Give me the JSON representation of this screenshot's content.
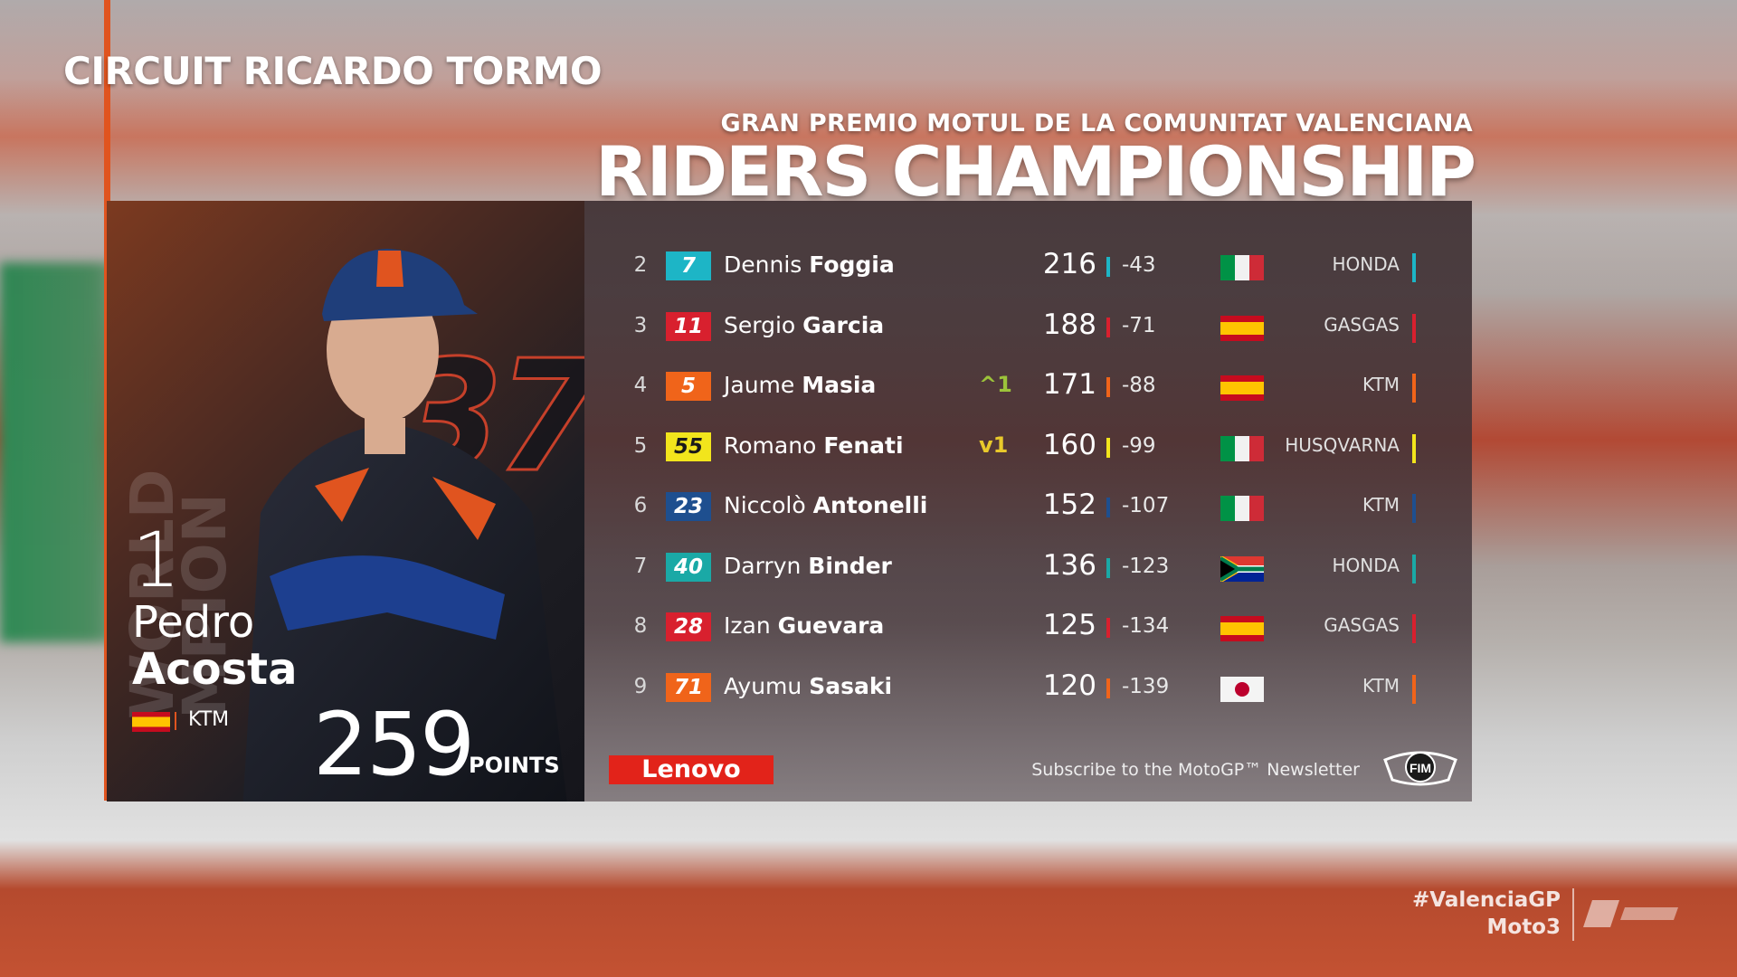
{
  "header": {
    "circuit": "CIRCUIT RICARDO TORMO",
    "event": "GRAN PREMIO MOTUL DE LA COMUNITAT VALENCIANA",
    "title": "RIDERS CHAMPIONSHIP"
  },
  "leader": {
    "watermark_line1": "WORLD",
    "watermark_line2": "MPION",
    "bike_number": "37",
    "position": "1",
    "first_name": "Pedro",
    "last_name": "Acosta",
    "flag": "spain-flag",
    "team": "KTM",
    "points": "259",
    "points_label": "POINTS"
  },
  "standings": [
    {
      "pos": "2",
      "num": "7",
      "num_bg": "#1db5c6",
      "num_color": "#ffffff",
      "first": "Dennis",
      "last": "Foggia",
      "move": "",
      "pts": "216",
      "bar": "#1db5c6",
      "gap": "-43",
      "flag": "italy-flag",
      "team": "HONDA",
      "team_color": "#1db5c6"
    },
    {
      "pos": "3",
      "num": "11",
      "num_bg": "#d8202e",
      "num_color": "#ffffff",
      "first": "Sergio",
      "last": "Garcia",
      "move": "",
      "pts": "188",
      "bar": "#d8202e",
      "gap": "-71",
      "flag": "spain-flag",
      "team": "GASGAS",
      "team_color": "#d8202e"
    },
    {
      "pos": "4",
      "num": "5",
      "num_bg": "#f0641a",
      "num_color": "#ffffff",
      "first": "Jaume",
      "last": "Masia",
      "move": "^1",
      "move_color": "#9cc33a",
      "pts": "171",
      "bar": "#f0641a",
      "gap": "-88",
      "flag": "spain-flag",
      "team": "KTM",
      "team_color": "#f0641a"
    },
    {
      "pos": "5",
      "num": "55",
      "num_bg": "#f2e51c",
      "num_color": "#1a1a1a",
      "first": "Romano",
      "last": "Fenati",
      "move": "v1",
      "move_color": "#e8c92b",
      "pts": "160",
      "bar": "#f2e51c",
      "gap": "-99",
      "flag": "italy-flag",
      "team": "HUSQVARNA",
      "team_color": "#f2e51c"
    },
    {
      "pos": "6",
      "num": "23",
      "num_bg": "#1e4f8f",
      "num_color": "#ffffff",
      "first": "Niccolò",
      "last": "Antonelli",
      "move": "",
      "pts": "152",
      "bar": "#1e4f8f",
      "gap": "-107",
      "flag": "italy-flag",
      "team": "KTM",
      "team_color": "#1e4f8f"
    },
    {
      "pos": "7",
      "num": "40",
      "num_bg": "#1aa9a6",
      "num_color": "#ffffff",
      "first": "Darryn",
      "last": "Binder",
      "move": "",
      "pts": "136",
      "bar": "#1aa9a6",
      "gap": "-123",
      "flag": "south-africa-flag",
      "team": "HONDA",
      "team_color": "#1aa9a6"
    },
    {
      "pos": "8",
      "num": "28",
      "num_bg": "#d8202e",
      "num_color": "#ffffff",
      "first": "Izan",
      "last": "Guevara",
      "move": "",
      "pts": "125",
      "bar": "#d8202e",
      "gap": "-134",
      "flag": "spain-flag",
      "team": "GASGAS",
      "team_color": "#d8202e"
    },
    {
      "pos": "9",
      "num": "71",
      "num_bg": "#f0641a",
      "num_color": "#ffffff",
      "first": "Ayumu",
      "last": "Sasaki",
      "move": "",
      "pts": "120",
      "bar": "#f0641a",
      "gap": "-139",
      "flag": "japan-flag",
      "team": "KTM",
      "team_color": "#f0641a"
    }
  ],
  "footer": {
    "sponsor": "Lenovo",
    "subscribe": "Subscribe to the MotoGP™ Newsletter",
    "fim_logo": "FIM",
    "hashtag": "#ValenciaGP",
    "category": "Moto3"
  },
  "colors": {
    "accent": "#e0541f",
    "sponsor": "#e2231a"
  }
}
